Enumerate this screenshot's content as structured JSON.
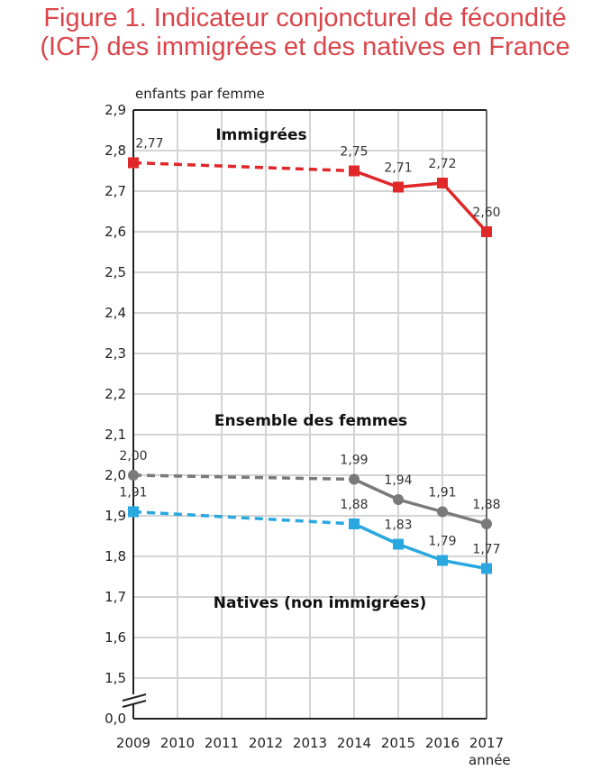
{
  "chart_data": {
    "type": "line",
    "title_line1": "Figure 1. Indicateur conjoncturel de fécondité",
    "title_line2": "(ICF) des immigrées et des natives en France",
    "ylabel": "enfants par femme",
    "xlabel": "année",
    "x": [
      2009,
      2010,
      2011,
      2012,
      2013,
      2014,
      2015,
      2016,
      2017
    ],
    "yticks": [
      "2,9",
      "2,8",
      "2,7",
      "2,6",
      "2,5",
      "2,4",
      "2,3",
      "2,2",
      "2,1",
      "2,0",
      "1,9",
      "1,8",
      "1,7",
      "1,6",
      "1,5",
      "0,0"
    ],
    "ylim": [
      1.5,
      2.9
    ],
    "axis_break": true,
    "grid": true,
    "series": [
      {
        "name": "Immigrées",
        "color": "#e0282a",
        "marker": "square",
        "points": [
          {
            "x": 2009,
            "y": 2.77,
            "label": "2,77"
          },
          {
            "x": 2014,
            "y": 2.75,
            "label": "2,75"
          },
          {
            "x": 2015,
            "y": 2.71,
            "label": "2,71"
          },
          {
            "x": 2016,
            "y": 2.72,
            "label": "2,72"
          },
          {
            "x": 2017,
            "y": 2.6,
            "label": "2,60"
          }
        ],
        "dashed_until": 2014
      },
      {
        "name": "Ensemble des femmes",
        "color": "#7a7a7a",
        "marker": "circle",
        "points": [
          {
            "x": 2009,
            "y": 2.0,
            "label": "2,00"
          },
          {
            "x": 2014,
            "y": 1.99,
            "label": "1,99"
          },
          {
            "x": 2015,
            "y": 1.94,
            "label": "1,94"
          },
          {
            "x": 2016,
            "y": 1.91,
            "label": "1,91"
          },
          {
            "x": 2017,
            "y": 1.88,
            "label": "1,88"
          }
        ],
        "dashed_until": 2014
      },
      {
        "name": "Natives (non immigrées)",
        "color": "#29a8e0",
        "marker": "square",
        "points": [
          {
            "x": 2009,
            "y": 1.91,
            "label": "1,91"
          },
          {
            "x": 2014,
            "y": 1.88,
            "label": "1,88"
          },
          {
            "x": 2015,
            "y": 1.83,
            "label": "1,83"
          },
          {
            "x": 2016,
            "y": 1.79,
            "label": "1,79"
          },
          {
            "x": 2017,
            "y": 1.77,
            "label": "1,77"
          }
        ],
        "dashed_until": 2014
      }
    ]
  }
}
